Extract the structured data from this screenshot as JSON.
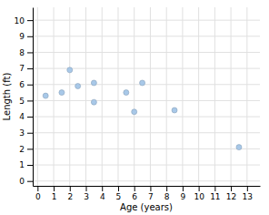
{
  "chart_data": {
    "type": "scatter",
    "x": [
      0.5,
      1.5,
      2.0,
      2.5,
      3.5,
      3.5,
      5.5,
      6.0,
      6.5,
      8.5,
      12.5
    ],
    "y": [
      5.3,
      5.5,
      6.9,
      5.9,
      4.9,
      6.1,
      5.5,
      4.3,
      6.1,
      4.4,
      2.1
    ],
    "xlabel": "Age (years)",
    "ylabel": "Length (ft)",
    "xlim": [
      -0.3,
      13.8
    ],
    "ylim": [
      -0.3,
      10.8
    ],
    "xticks": [
      0,
      1,
      2,
      3,
      4,
      5,
      6,
      7,
      8,
      9,
      10,
      11,
      12,
      13
    ],
    "yticks": [
      0,
      1,
      2,
      3,
      4,
      5,
      6,
      7,
      8,
      9,
      10
    ],
    "color": "#a8c8e8",
    "grid": true
  }
}
